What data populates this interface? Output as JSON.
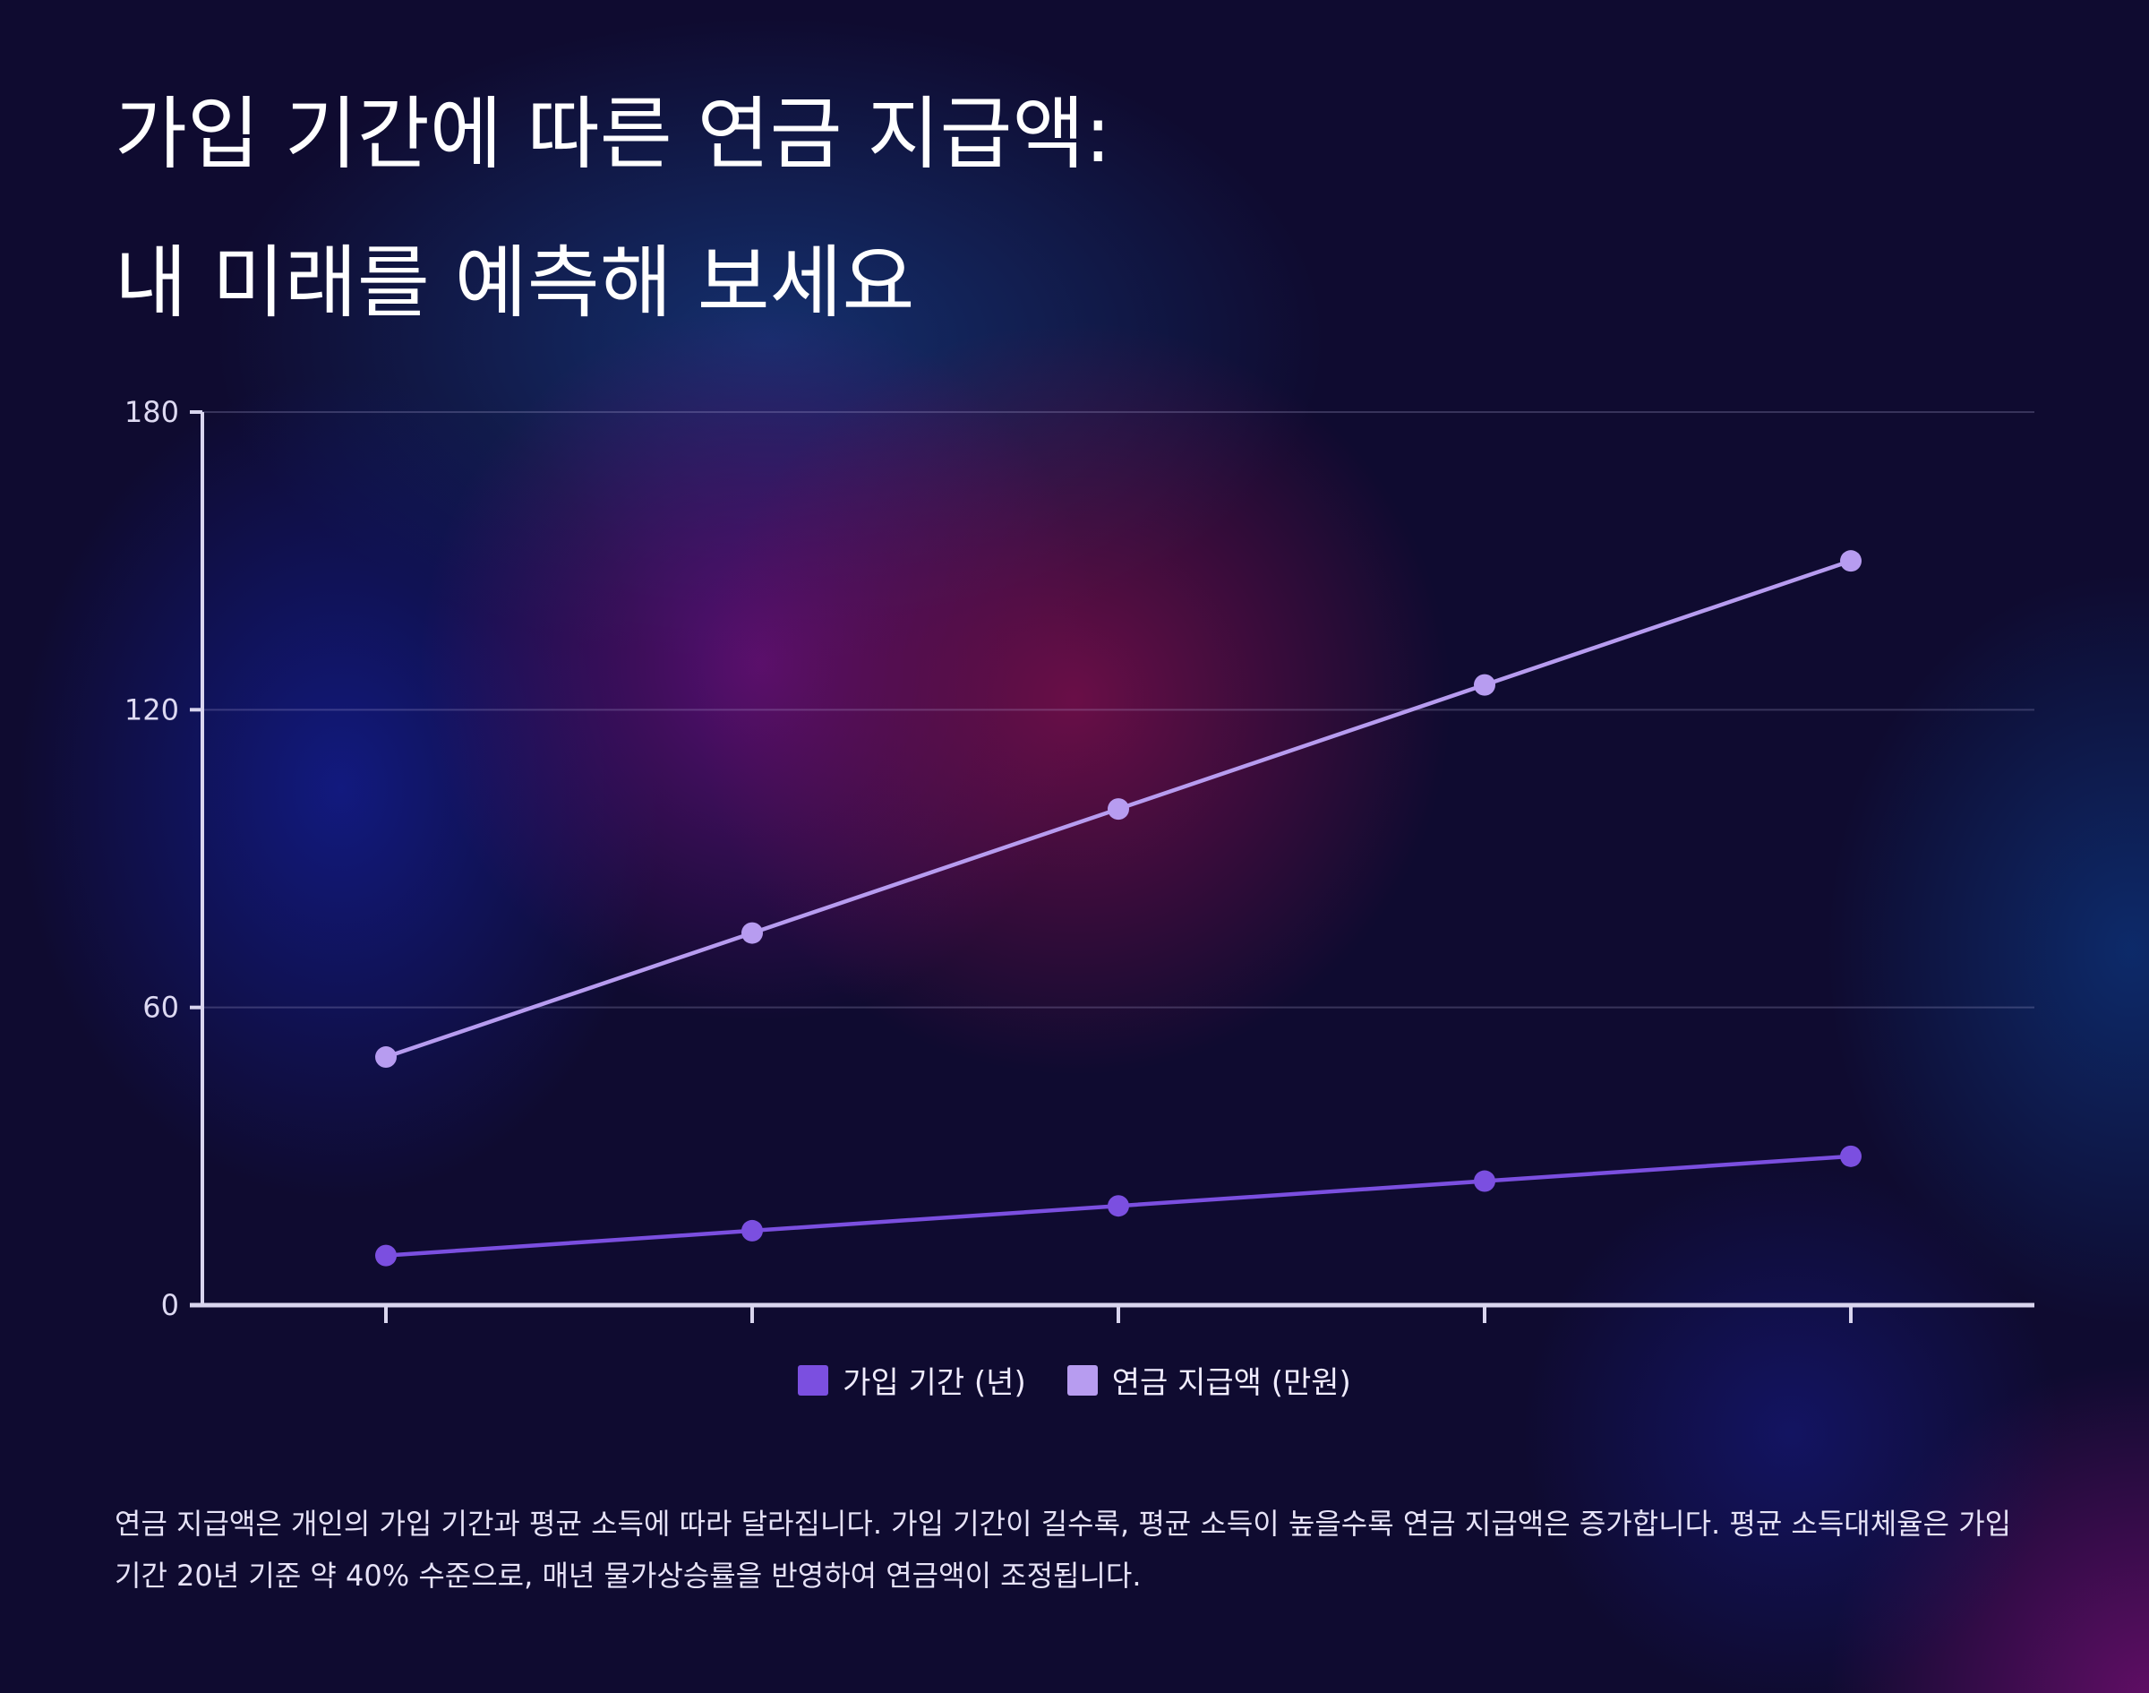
{
  "header": {
    "title_line_1": "가입 기간에 따른 연금 지급액:",
    "title_line_2": "내 미래를 예측해 보세요"
  },
  "legend": [
    {
      "label": "가입 기간 (년)",
      "color": "#7b4fe0"
    },
    {
      "label": "연금 지급액 (만원)",
      "color": "#b79cf0"
    }
  ],
  "footnote": "연금 지급액은 개인의 가입 기간과 평균 소득에 따라 달라집니다. 가입 기간이 길수록, 평균 소득이 높을수록 연금 지급액은 증가합니다. 평균 소득대체율은 가입 기간 20년 기준 약 40% 수준으로, 매년 물가상승률을 반영하여 연금액이 조정됩니다.",
  "chart_data": {
    "type": "line",
    "categories": [
      "",
      "",
      "",
      "",
      ""
    ],
    "ylim": [
      0,
      180
    ],
    "yticks": [
      0,
      60,
      120,
      180
    ],
    "grid": true,
    "legend_position": "bottom",
    "series": [
      {
        "name": "가입 기간 (년)",
        "values": [
          10,
          15,
          20,
          25,
          30
        ],
        "color": "#7b4fe0"
      },
      {
        "name": "연금 지급액 (만원)",
        "values": [
          50,
          75,
          100,
          125,
          150
        ],
        "color": "#b79cf0"
      }
    ]
  }
}
